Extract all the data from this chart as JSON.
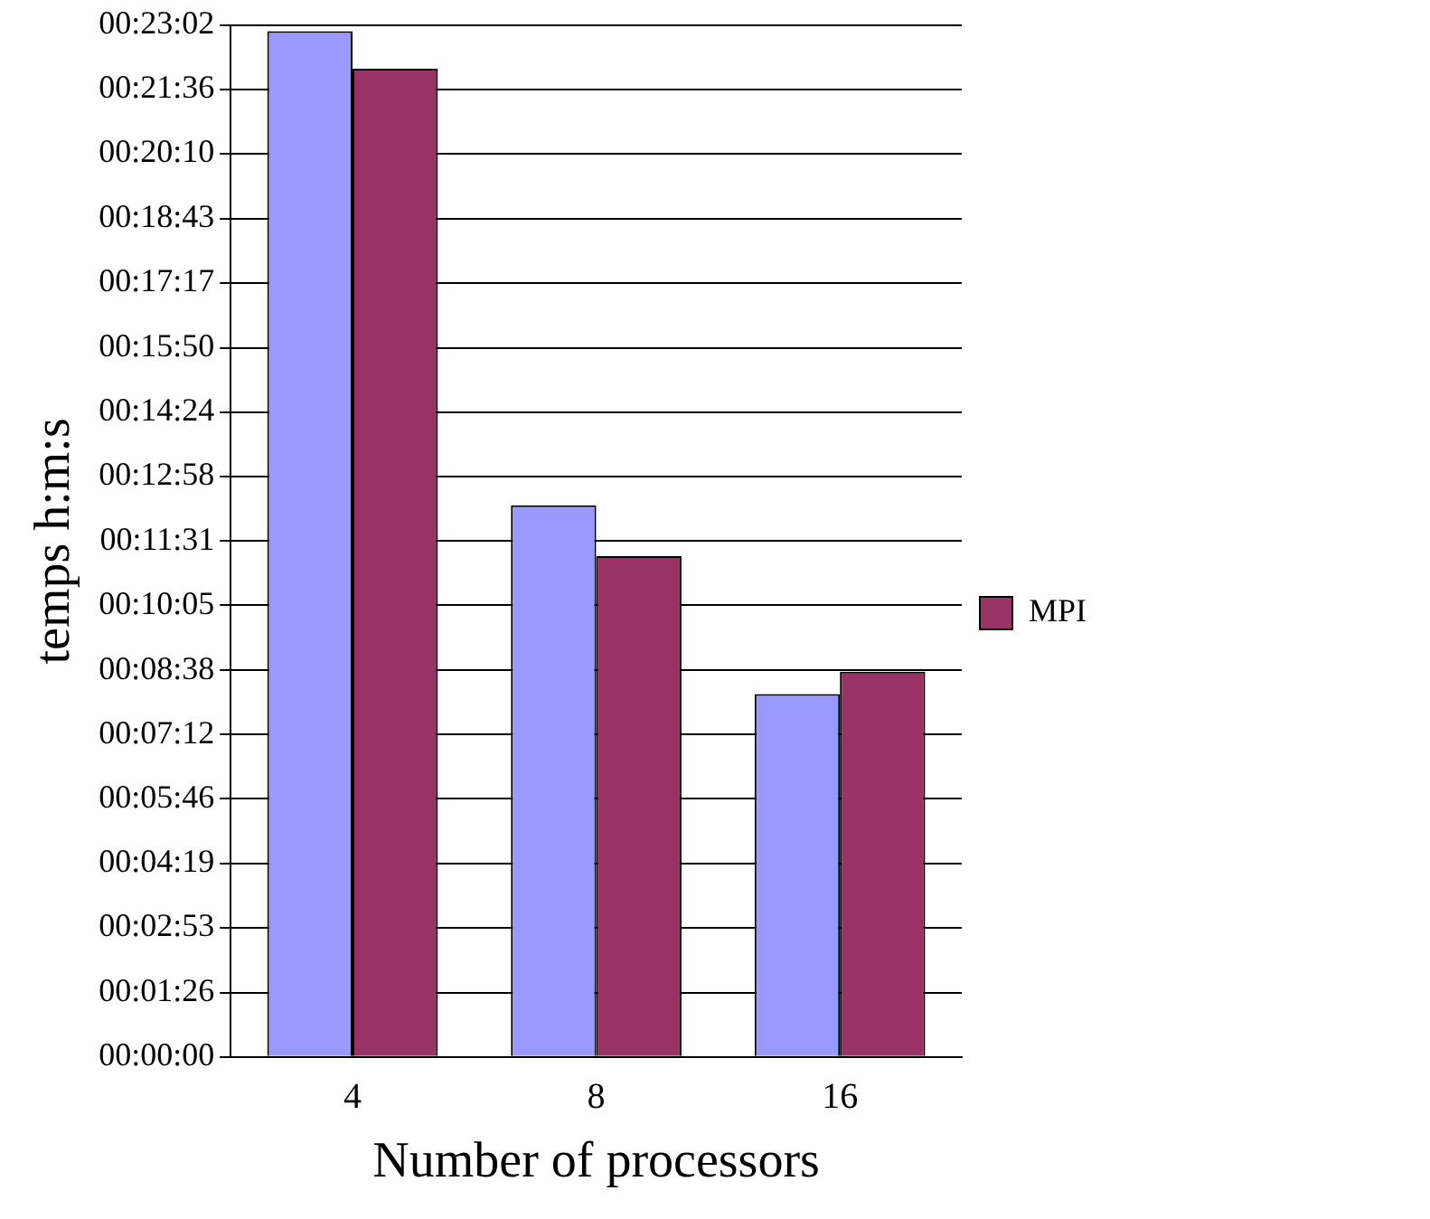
{
  "chart_data": {
    "type": "bar",
    "xlabel": "Number of processors",
    "ylabel": "temps h:m:s",
    "categories": [
      "4",
      "8",
      "16"
    ],
    "series": [
      {
        "color": "#9999ff",
        "values": [
          1374,
          739,
          486
        ]
      },
      {
        "name": "MPI",
        "color": "#993366",
        "values": [
          1324,
          671,
          516
        ]
      }
    ],
    "ylim": [
      0,
      1382
    ],
    "yticks": [
      {
        "value": 0,
        "label": "00:00:00"
      },
      {
        "value": 86,
        "label": "00:01:26"
      },
      {
        "value": 173,
        "label": "00:02:53"
      },
      {
        "value": 259,
        "label": "00:04:19"
      },
      {
        "value": 346,
        "label": "00:05:46"
      },
      {
        "value": 432,
        "label": "00:07:12"
      },
      {
        "value": 518,
        "label": "00:08:38"
      },
      {
        "value": 605,
        "label": "00:10:05"
      },
      {
        "value": 691,
        "label": "00:11:31"
      },
      {
        "value": 778,
        "label": "00:12:58"
      },
      {
        "value": 864,
        "label": "00:14:24"
      },
      {
        "value": 950,
        "label": "00:15:50"
      },
      {
        "value": 1037,
        "label": "00:17:17"
      },
      {
        "value": 1123,
        "label": "00:18:43"
      },
      {
        "value": 1210,
        "label": "00:20:10"
      },
      {
        "value": 1296,
        "label": "00:21:36"
      },
      {
        "value": 1382,
        "label": "00:23:02"
      }
    ],
    "grid": "y",
    "legend": "right"
  }
}
